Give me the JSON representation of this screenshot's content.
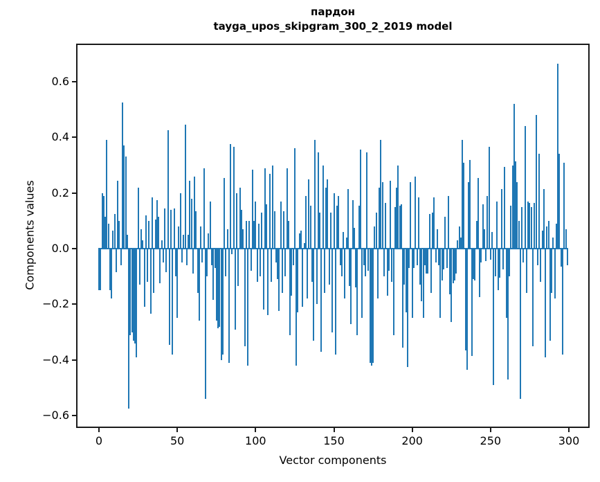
{
  "figure": {
    "background": "#ffffff"
  },
  "chart_data": {
    "type": "bar",
    "title": "пардон",
    "subtitle": "tayga_upos_skipgram_300_2_2019 model",
    "xlabel": "Vector components",
    "ylabel": "Components values",
    "bar_color": "#1f77b4",
    "axis_color": "#1a1a1a",
    "n_components": 300,
    "x_ticks": [
      0,
      50,
      100,
      150,
      200,
      250,
      300
    ],
    "y_ticks": [
      0.6,
      0.4,
      0.2,
      0.0,
      -0.2,
      -0.4,
      -0.6
    ],
    "y_tick_labels": [
      "0.6",
      "0.4",
      "0.2",
      "0.0",
      "−0.2",
      "−0.4",
      "−0.6"
    ],
    "xlim": [
      -14.6,
      313.3
    ],
    "ylim": [
      -0.645,
      0.737
    ],
    "grid": false,
    "legend": "none",
    "values": [
      -0.15,
      -0.15,
      0.2,
      0.19,
      0.115,
      0.39,
      0.09,
      -0.15,
      -0.18,
      0.065,
      0.125,
      -0.085,
      0.245,
      0.1,
      -0.06,
      0.525,
      0.37,
      0.33,
      0.05,
      -0.575,
      -0.31,
      -0.3,
      -0.33,
      -0.34,
      -0.39,
      0.22,
      -0.13,
      0.07,
      0.03,
      -0.21,
      0.12,
      -0.12,
      0.1,
      -0.235,
      0.185,
      -0.16,
      0.105,
      0.175,
      0.115,
      -0.125,
      0.03,
      -0.05,
      0.145,
      -0.085,
      0.425,
      -0.345,
      0.14,
      -0.38,
      0.145,
      -0.1,
      -0.25,
      0.08,
      0.2,
      -0.05,
      0.05,
      0.445,
      -0.06,
      0.05,
      0.245,
      0.18,
      -0.09,
      0.26,
      0.135,
      -0.16,
      -0.26,
      0.08,
      -0.05,
      0.29,
      -0.54,
      -0.1,
      0.055,
      0.17,
      -0.06,
      -0.185,
      -0.07,
      -0.26,
      -0.285,
      -0.28,
      -0.4,
      -0.38,
      0.255,
      -0.1,
      0.07,
      -0.41,
      0.375,
      -0.02,
      0.365,
      -0.29,
      0.2,
      -0.135,
      0.22,
      0.14,
      0.07,
      -0.35,
      0.1,
      -0.42,
      0.1,
      -0.08,
      0.285,
      0.1,
      0.17,
      -0.12,
      0.09,
      -0.1,
      0.13,
      -0.22,
      0.29,
      0.16,
      -0.24,
      0.27,
      -0.12,
      0.3,
      0.135,
      -0.05,
      -0.11,
      -0.225,
      0.17,
      -0.16,
      0.135,
      -0.1,
      0.29,
      0.1,
      -0.31,
      -0.17,
      -0.06,
      0.36,
      -0.42,
      -0.23,
      0.055,
      0.065,
      -0.21,
      0.02,
      0.19,
      -0.18,
      0.25,
      0.155,
      -0.12,
      -0.33,
      0.39,
      -0.2,
      0.345,
      0.13,
      -0.37,
      0.3,
      -0.16,
      0.22,
      0.25,
      -0.13,
      0.13,
      -0.3,
      0.2,
      -0.38,
      0.155,
      0.19,
      -0.06,
      -0.1,
      0.06,
      -0.18,
      0.04,
      0.215,
      -0.135,
      -0.27,
      0.175,
      0.075,
      -0.14,
      -0.31,
      0.155,
      0.355,
      -0.25,
      -0.06,
      -0.1,
      0.345,
      -0.08,
      -0.41,
      -0.42,
      -0.41,
      0.08,
      0.13,
      -0.18,
      0.22,
      0.39,
      0.24,
      -0.1,
      0.165,
      -0.17,
      -0.08,
      0.245,
      -0.12,
      -0.31,
      0.15,
      0.22,
      0.3,
      0.155,
      0.16,
      -0.355,
      -0.13,
      -0.23,
      -0.425,
      -0.07,
      0.24,
      -0.25,
      -0.07,
      0.26,
      -0.06,
      0.185,
      -0.13,
      -0.19,
      -0.25,
      -0.06,
      -0.09,
      -0.09,
      0.125,
      -0.16,
      0.13,
      0.185,
      -0.05,
      0.07,
      -0.06,
      -0.25,
      -0.115,
      -0.075,
      0.115,
      -0.07,
      0.19,
      -0.165,
      -0.265,
      -0.125,
      -0.115,
      -0.09,
      0.03,
      0.08,
      0.04,
      0.39,
      0.31,
      -0.365,
      -0.435,
      0.24,
      0.32,
      -0.385,
      -0.11,
      -0.115,
      0.1,
      0.255,
      -0.175,
      -0.05,
      0.16,
      0.07,
      -0.045,
      0.19,
      0.365,
      -0.04,
      0.06,
      -0.49,
      -0.1,
      0.17,
      -0.15,
      -0.105,
      0.215,
      -0.075,
      0.295,
      -0.25,
      -0.47,
      -0.1,
      0.155,
      0.3,
      0.52,
      0.315,
      0.24,
      0.1,
      -0.54,
      0.15,
      -0.05,
      0.44,
      -0.16,
      0.17,
      0.165,
      0.15,
      -0.35,
      0.165,
      0.48,
      -0.06,
      0.34,
      -0.12,
      0.065,
      0.215,
      -0.39,
      0.08,
      0.1,
      -0.33,
      -0.16,
      0.04,
      -0.18,
      0.09,
      0.665,
      0.34,
      -0.065,
      -0.38,
      0.31,
      0.07,
      -0.06
    ]
  }
}
